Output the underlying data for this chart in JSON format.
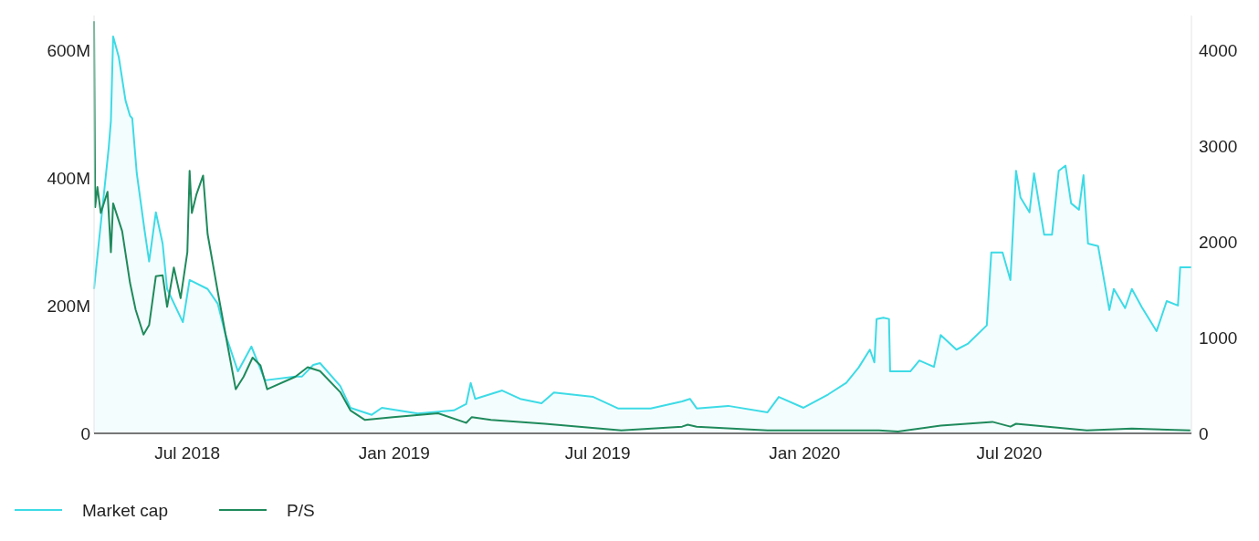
{
  "chart_data": {
    "type": "line",
    "xlim": [
      "2018-04-09",
      "2020-12-10"
    ],
    "xticks": [
      {
        "value": "2018-07-01",
        "label": "Jul 2018"
      },
      {
        "value": "2019-01-01",
        "label": "Jan 2019"
      },
      {
        "value": "2019-07-01",
        "label": "Jul 2019"
      },
      {
        "value": "2020-01-01",
        "label": "Jan 2020"
      },
      {
        "value": "2020-07-01",
        "label": "Jul 2020"
      }
    ],
    "ylim": [
      0,
      654000000
    ],
    "yticks": [
      0,
      {
        "value": 200000000,
        "label": "200M"
      },
      {
        "value": 400000000,
        "label": "400M"
      },
      {
        "value": 600000000,
        "label": "600M"
      }
    ],
    "y2lim": [
      0,
      4360
    ],
    "y2ticks": [
      0,
      1000,
      2000,
      3000,
      4000
    ],
    "grid": false,
    "legend": "bottom left",
    "series": [
      {
        "name": "Market cap",
        "type": "area",
        "color": "#3ddbe6",
        "x": [
          "2018-04-09",
          "2018-04-14",
          "2018-04-22",
          "2018-04-24",
          "2018-04-26",
          "2018-05-01",
          "2018-05-07",
          "2018-05-11",
          "2018-05-13",
          "2018-05-17",
          "2018-05-24",
          "2018-05-28",
          "2018-06-03",
          "2018-06-09",
          "2018-06-13",
          "2018-06-27",
          "2018-07-03",
          "2018-07-19",
          "2018-07-28",
          "2018-08-04",
          "2018-08-15",
          "2018-08-27",
          "2018-09-08",
          "2018-10-05",
          "2018-10-11",
          "2018-10-21",
          "2018-10-27",
          "2018-11-14",
          "2018-11-23",
          "2018-12-12",
          "2018-12-21",
          "2019-01-22",
          "2019-02-23",
          "2019-03-06",
          "2019-03-10",
          "2019-03-14",
          "2019-04-07",
          "2019-04-23",
          "2019-05-12",
          "2019-05-23",
          "2019-06-27",
          "2019-07-19",
          "2019-08-17",
          "2019-09-14",
          "2019-09-21",
          "2019-09-27",
          "2019-10-25",
          "2019-11-29",
          "2019-12-09",
          "2019-12-31",
          "2020-01-22",
          "2020-02-07",
          "2020-02-18",
          "2020-02-28",
          "2020-03-03",
          "2020-03-05",
          "2020-03-11",
          "2020-03-16",
          "2020-03-17",
          "2020-04-04",
          "2020-04-12",
          "2020-04-25",
          "2020-05-01",
          "2020-05-15",
          "2020-05-25",
          "2020-06-11",
          "2020-06-15",
          "2020-06-25",
          "2020-07-02",
          "2020-07-07",
          "2020-07-11",
          "2020-07-19",
          "2020-07-23",
          "2020-08-01",
          "2020-08-08",
          "2020-08-14",
          "2020-08-20",
          "2020-08-25",
          "2020-09-01",
          "2020-09-05",
          "2020-09-09",
          "2020-09-18",
          "2020-09-28",
          "2020-10-02",
          "2020-10-12",
          "2020-10-18",
          "2020-10-27",
          "2020-11-09",
          "2020-11-18",
          "2020-11-28",
          "2020-11-30",
          "2020-12-10"
        ],
        "values": [
          226000000,
          311000000,
          446000000,
          489000000,
          621000000,
          589000000,
          521000000,
          497000000,
          493000000,
          407000000,
          317000000,
          269000000,
          346000000,
          297000000,
          226000000,
          174000000,
          240000000,
          226000000,
          203000000,
          154000000,
          97000000,
          136000000,
          83000000,
          89000000,
          89000000,
          107000000,
          110000000,
          74000000,
          40000000,
          29000000,
          40000000,
          31000000,
          36000000,
          46000000,
          79000000,
          54000000,
          67000000,
          54000000,
          47000000,
          64000000,
          57000000,
          39000000,
          39000000,
          50000000,
          54000000,
          39000000,
          43000000,
          33000000,
          57000000,
          40000000,
          61000000,
          79000000,
          103000000,
          131000000,
          111000000,
          179000000,
          181000000,
          179000000,
          97000000,
          97000000,
          114000000,
          104000000,
          154000000,
          131000000,
          140000000,
          169000000,
          283000000,
          283000000,
          240000000,
          411000000,
          369000000,
          346000000,
          407000000,
          311000000,
          311000000,
          411000000,
          419000000,
          360000000,
          350000000,
          404000000,
          297000000,
          293000000,
          193000000,
          226000000,
          196000000,
          226000000,
          197000000,
          160000000,
          207000000,
          200000000,
          260000000,
          260000000
        ]
      },
      {
        "name": "P/S",
        "axis": "y2",
        "color": "#1f8a5c",
        "x": [
          "2018-04-09",
          "2018-04-10",
          "2018-04-12",
          "2018-04-15",
          "2018-04-21",
          "2018-04-24",
          "2018-04-26",
          "2018-05-04",
          "2018-05-11",
          "2018-05-16",
          "2018-05-23",
          "2018-05-28",
          "2018-06-03",
          "2018-06-09",
          "2018-06-13",
          "2018-06-19",
          "2018-06-25",
          "2018-07-01",
          "2018-07-03",
          "2018-07-05",
          "2018-07-09",
          "2018-07-15",
          "2018-07-19",
          "2018-07-28",
          "2018-08-04",
          "2018-08-13",
          "2018-08-20",
          "2018-08-28",
          "2018-09-04",
          "2018-09-10",
          "2018-10-05",
          "2018-10-16",
          "2018-10-27",
          "2018-11-14",
          "2018-11-23",
          "2018-12-06",
          "2018-12-31",
          "2019-02-09",
          "2019-03-06",
          "2019-03-11",
          "2019-03-28",
          "2019-05-15",
          "2019-07-22",
          "2019-09-14",
          "2019-09-19",
          "2019-09-27",
          "2019-11-29",
          "2020-03-07",
          "2020-03-24",
          "2020-05-01",
          "2020-06-16",
          "2020-07-02",
          "2020-07-07",
          "2020-09-08",
          "2020-10-18",
          "2020-12-09"
        ],
        "values": [
          4300,
          2360,
          2570,
          2300,
          2520,
          1890,
          2400,
          2110,
          1570,
          1290,
          1030,
          1130,
          1640,
          1650,
          1320,
          1730,
          1410,
          1890,
          2740,
          2300,
          2490,
          2690,
          2080,
          1480,
          1030,
          460,
          590,
          790,
          710,
          460,
          590,
          690,
          650,
          430,
          240,
          140,
          170,
          210,
          110,
          170,
          140,
          100,
          30,
          70,
          90,
          70,
          30,
          30,
          20,
          80,
          120,
          70,
          100,
          30,
          50,
          30
        ]
      }
    ]
  }
}
